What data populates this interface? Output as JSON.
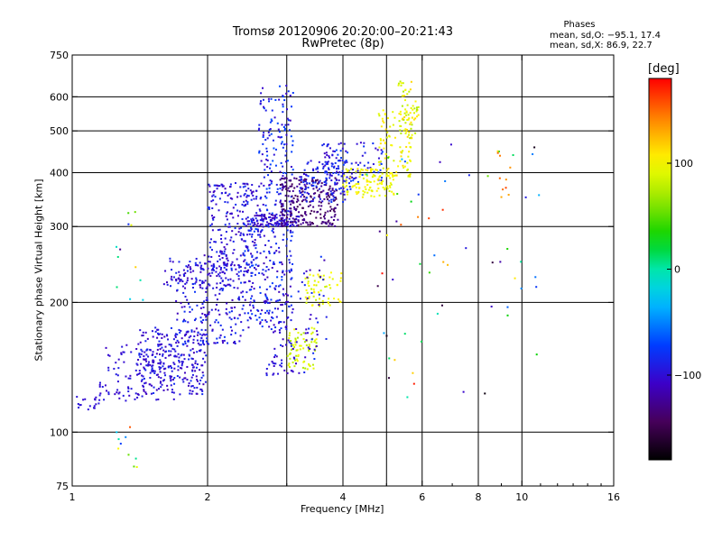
{
  "header": {
    "title_line1": "Tromsø 20120906 20:20:00–20:21:43",
    "title_line2": "RwPretec (8p)"
  },
  "phase_box": {
    "title": "Phases",
    "line_o": "mean, sd,O: −95.1, 17.4",
    "line_x": "mean, sd,X: 86.9, 22.7"
  },
  "colorbar": {
    "label": "[deg]",
    "ticks": [
      "100",
      "0",
      "−100"
    ],
    "tick_values": [
      100,
      0,
      -100
    ],
    "range": [
      -180,
      180
    ],
    "palette": "rainbow"
  },
  "chart_data": {
    "type": "scatter",
    "title": "Tromsø 20120906 20:20:00–20:21:43",
    "subtitle": "RwPretec (8p)",
    "xlabel": "Frequency [MHz]",
    "ylabel": "Stationary phase Virtual Height [km]",
    "x_scale": "log",
    "y_scale": "log",
    "xlim": [
      1,
      16
    ],
    "ylim": [
      75,
      750
    ],
    "x_ticks": [
      1,
      2,
      4,
      6,
      8,
      10,
      16
    ],
    "x_tick_labels": [
      "1",
      "2",
      "4",
      "6",
      "8",
      "10",
      "16"
    ],
    "y_ticks": [
      75,
      100,
      200,
      300,
      400,
      500,
      600,
      750
    ],
    "y_tick_labels": [
      "75",
      "100",
      "200",
      "300",
      "400",
      "500",
      "600",
      "750"
    ],
    "x_grid": [
      2,
      3,
      4,
      5,
      6,
      8,
      10
    ],
    "y_grid": [
      100,
      200,
      300,
      400,
      500,
      600
    ],
    "color_value": "phase [deg]",
    "clusters": [
      {
        "f": [
          1.0,
          1.15
        ],
        "h": [
          112,
          122
        ],
        "phase": [
          -105,
          -95
        ],
        "n": 18
      },
      {
        "f": [
          1.15,
          1.7
        ],
        "h": [
          118,
          160
        ],
        "phase": [
          -110,
          -90
        ],
        "n": 110
      },
      {
        "f": [
          1.4,
          2.0
        ],
        "h": [
          122,
          175
        ],
        "phase": [
          -115,
          -80
        ],
        "n": 260
      },
      {
        "f": [
          1.7,
          2.4
        ],
        "h": [
          160,
          250
        ],
        "phase": [
          -115,
          -75
        ],
        "n": 220
      },
      {
        "f": [
          1.6,
          2.3
        ],
        "h": [
          215,
          260
        ],
        "phase": [
          -115,
          -85
        ],
        "n": 70
      },
      {
        "f": [
          2.0,
          2.6
        ],
        "h": [
          230,
          380
        ],
        "phase": [
          -115,
          -80
        ],
        "n": 220
      },
      {
        "f": [
          2.4,
          3.1
        ],
        "h": [
          170,
          320
        ],
        "phase": [
          -115,
          -70
        ],
        "n": 260
      },
      {
        "f": [
          2.5,
          3.2
        ],
        "h": [
          300,
          320
        ],
        "phase": [
          -120,
          -90
        ],
        "n": 90
      },
      {
        "f": [
          2.6,
          3.1
        ],
        "h": [
          320,
          640
        ],
        "phase": [
          -110,
          -65
        ],
        "n": 160
      },
      {
        "f": [
          2.9,
          3.9
        ],
        "h": [
          300,
          390
        ],
        "phase": [
          -150,
          -120
        ],
        "n": 230
      },
      {
        "f": [
          3.2,
          4.2
        ],
        "h": [
          340,
          430
        ],
        "phase": [
          -105,
          -75
        ],
        "n": 120
      },
      {
        "f": [
          3.6,
          4.9
        ],
        "h": [
          380,
          470
        ],
        "phase": [
          -110,
          -70
        ],
        "n": 100
      },
      {
        "f": [
          4.0,
          5.2
        ],
        "h": [
          350,
          410
        ],
        "phase": [
          85,
          110
        ],
        "n": 110
      },
      {
        "f": [
          4.8,
          5.7
        ],
        "h": [
          390,
          560
        ],
        "phase": [
          85,
          115
        ],
        "n": 90
      },
      {
        "f": [
          5.3,
          5.9
        ],
        "h": [
          480,
          660
        ],
        "phase": [
          70,
          115
        ],
        "n": 60
      },
      {
        "f": [
          3.0,
          3.5
        ],
        "h": [
          140,
          175
        ],
        "phase": [
          70,
          100
        ],
        "n": 70
      },
      {
        "f": [
          3.3,
          4.0
        ],
        "h": [
          195,
          235
        ],
        "phase": [
          80,
          110
        ],
        "n": 60
      },
      {
        "f": [
          2.7,
          3.3
        ],
        "h": [
          135,
          165
        ],
        "phase": [
          -115,
          -80
        ],
        "n": 40
      },
      {
        "f": [
          3.1,
          3.7
        ],
        "h": [
          145,
          260
        ],
        "phase": [
          -120,
          -75
        ],
        "n": 40
      },
      {
        "f": [
          1.25,
          1.6
        ],
        "h": [
          82,
          105
        ],
        "phase": [
          -120,
          160
        ],
        "n": 10
      },
      {
        "f": [
          1.25,
          1.45
        ],
        "h": [
          200,
          340
        ],
        "phase": [
          -170,
          150
        ],
        "n": 12
      },
      {
        "f": [
          4.5,
          11.0
        ],
        "h": [
          120,
          480
        ],
        "phase": [
          -180,
          180
        ],
        "n": 60
      },
      {
        "f": [
          8.8,
          9.5
        ],
        "h": [
          330,
          480
        ],
        "phase": [
          110,
          160
        ],
        "n": 10
      }
    ]
  }
}
